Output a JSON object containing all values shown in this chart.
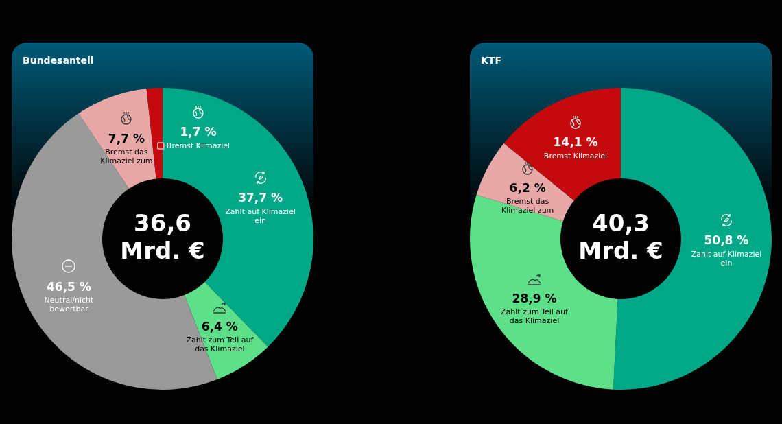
{
  "chart_data": [
    {
      "type": "donut",
      "title": "Bundesanteil",
      "categories": [
        "Zahlt auf Klimaziel ein",
        "Zahlt zum Teil auf das Klimaziel",
        "Neutral/nicht bewertbar",
        "Bremst das Klimaziel zum",
        "Bremst Klimaziel"
      ],
      "values": [
        37.7,
        6.4,
        46.5,
        7.7,
        1.7
      ],
      "colors": [
        "#00a887",
        "#5ee08a",
        "#9a9a9a",
        "#e8a8a8",
        "#c40a0e"
      ],
      "value_labels": [
        "37,7 %",
        "6,4 %",
        "46,5 %",
        "7,7 %",
        "1,7 %"
      ],
      "annotations": [
        "36,6 Mrd. €"
      ]
    },
    {
      "type": "donut",
      "title": "KTF",
      "categories": [
        "Zahlt auf Klimaziel ein",
        "Zahlt zum Teil auf das Klimaziel",
        "Bremst das Klimaziel zum",
        "Bremst Klimaziel"
      ],
      "values": [
        50.8,
        28.9,
        6.2,
        14.1
      ],
      "colors": [
        "#00a887",
        "#5ee08a",
        "#e8a8a8",
        "#c40a0e"
      ],
      "value_labels": [
        "50,8 %",
        "28,9 %",
        "6,2 %",
        "14,1 %"
      ],
      "annotations": [
        "40,3 Mrd. €"
      ]
    }
  ]
}
